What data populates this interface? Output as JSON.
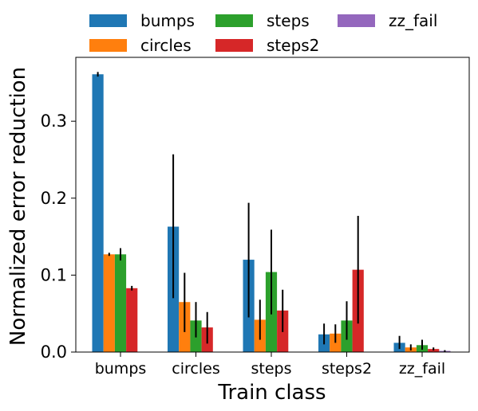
{
  "chart_data": {
    "type": "bar",
    "title": "",
    "xlabel": "Train class",
    "ylabel": "Normalized error reduction",
    "categories": [
      "bumps",
      "circles",
      "steps",
      "steps2",
      "zz_fail"
    ],
    "ylim": [
      0,
      0.383
    ],
    "yticks": [
      0.0,
      0.1,
      0.2,
      0.3
    ],
    "ytick_labels": [
      "0.0",
      "0.1",
      "0.2",
      "0.3"
    ],
    "grid": false,
    "legend_position": "top, above plot, 3 columns",
    "series": [
      {
        "name": "bumps",
        "color": "#1f77b4",
        "values": [
          0.361,
          0.163,
          0.12,
          0.023,
          0.012
        ],
        "err_low": [
          0.358,
          0.07,
          0.045,
          0.01,
          0.004
        ],
        "err_high": [
          0.364,
          0.257,
          0.194,
          0.037,
          0.021
        ]
      },
      {
        "name": "circles",
        "color": "#ff7f0e",
        "values": [
          0.127,
          0.065,
          0.042,
          0.024,
          0.006
        ],
        "err_low": [
          0.125,
          0.026,
          0.016,
          0.012,
          0.002
        ],
        "err_high": [
          0.129,
          0.103,
          0.068,
          0.036,
          0.01
        ]
      },
      {
        "name": "steps",
        "color": "#2ca02c",
        "values": [
          0.127,
          0.041,
          0.104,
          0.041,
          0.009
        ],
        "err_low": [
          0.119,
          0.019,
          0.049,
          0.016,
          0.003
        ],
        "err_high": [
          0.135,
          0.065,
          0.159,
          0.066,
          0.016
        ]
      },
      {
        "name": "steps2",
        "color": "#d62728",
        "values": [
          0.083,
          0.032,
          0.054,
          0.107,
          0.004
        ],
        "err_low": [
          0.08,
          0.011,
          0.026,
          0.037,
          0.002
        ],
        "err_high": [
          0.086,
          0.052,
          0.081,
          0.177,
          0.006
        ]
      },
      {
        "name": "zz_fail",
        "color": "#9467bd",
        "values": [
          0.0,
          0.0005,
          0.0005,
          0.0005,
          0.0015
        ],
        "err_low": [
          0.0,
          0.0003,
          0.0003,
          0.0003,
          0.0005
        ],
        "err_high": [
          0.0,
          0.0007,
          0.0007,
          0.0007,
          0.0025
        ]
      }
    ]
  }
}
